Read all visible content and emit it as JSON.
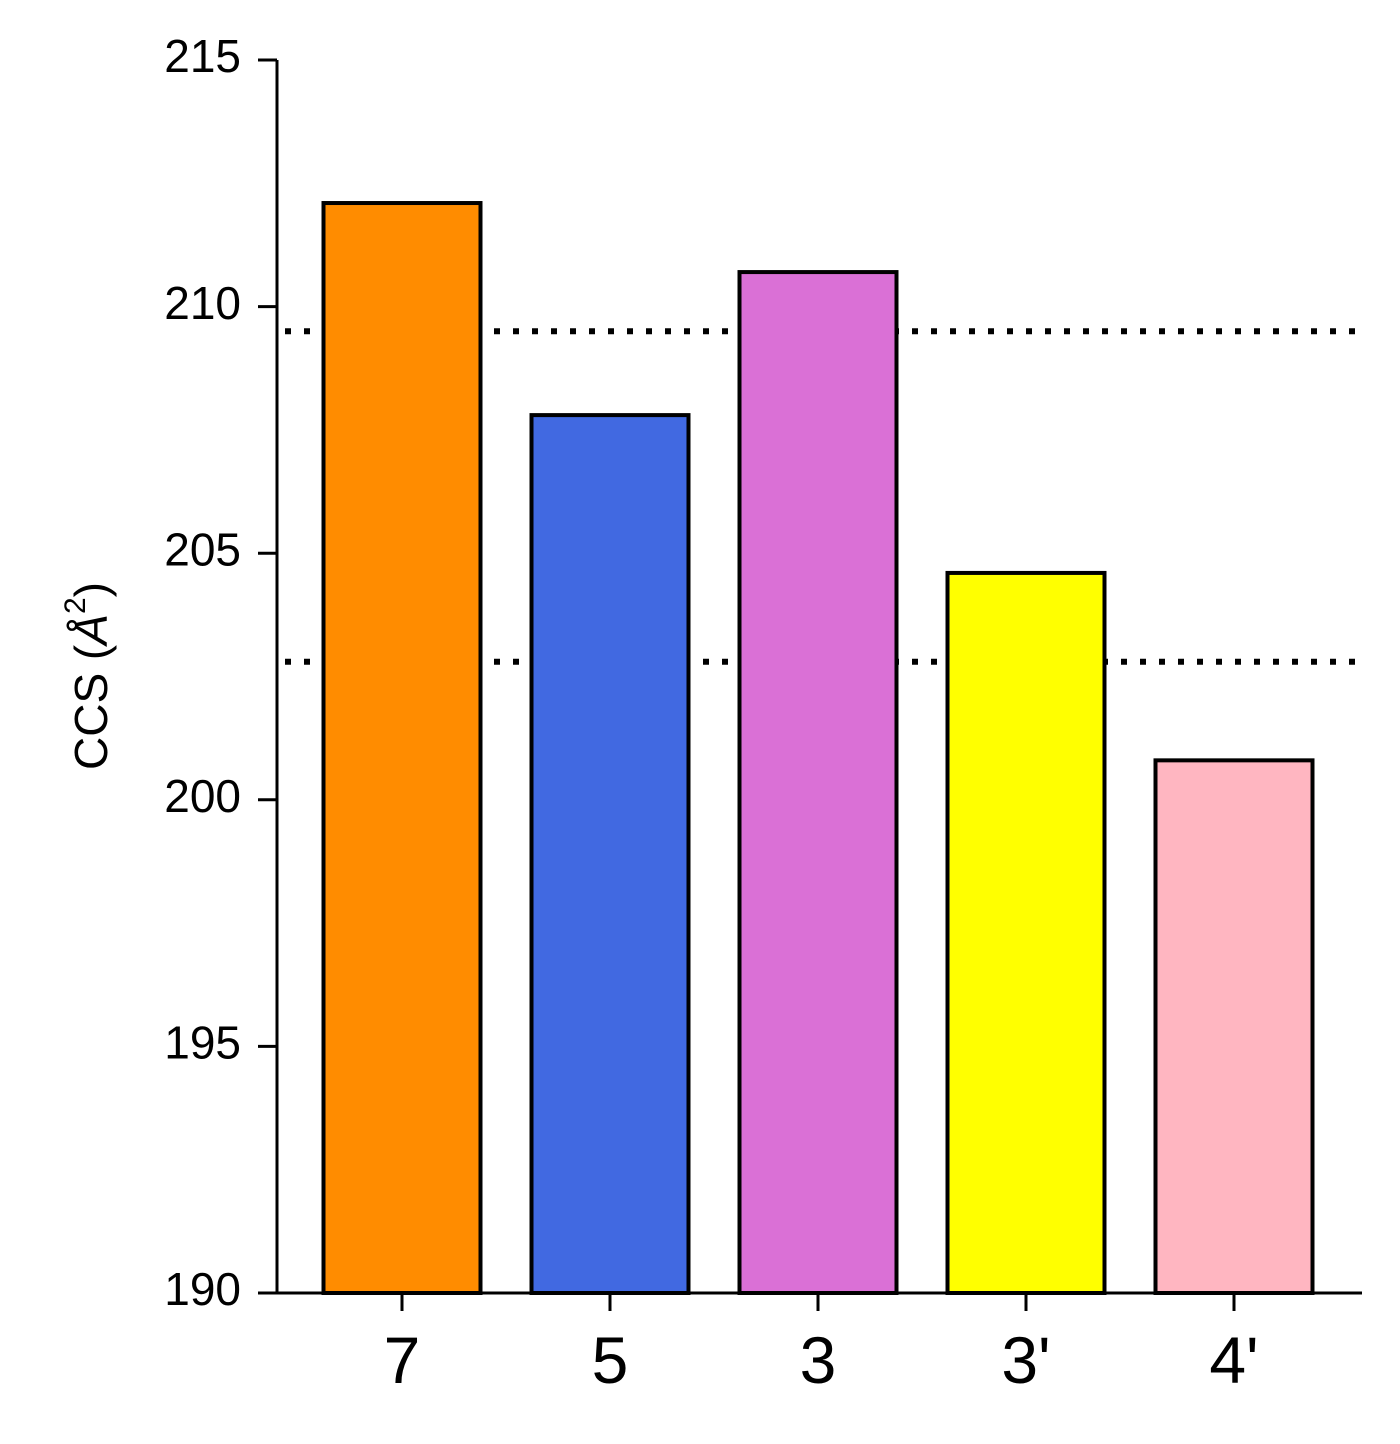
{
  "chart_data": {
    "type": "bar",
    "categories": [
      "7",
      "5",
      "3",
      "3'",
      "4'"
    ],
    "values": [
      212.1,
      207.8,
      210.7,
      204.6,
      200.8
    ],
    "colors": [
      "#ff8c00",
      "#4169e1",
      "#da70d6",
      "#ffff00",
      "#ffb6c1"
    ],
    "edge_color": "#000000",
    "ylabel_main": "CCS (",
    "ylabel_unit": "Å",
    "ylabel_sup": "2",
    "ylabel_close": ")",
    "ylim": [
      190,
      215
    ],
    "yticks": [
      190,
      195,
      200,
      205,
      210,
      215
    ],
    "reference_lines": [
      {
        "y": 209.5,
        "style": "dotted"
      },
      {
        "y": 202.8,
        "style": "dotted"
      }
    ],
    "grid": false,
    "legend": "none"
  }
}
